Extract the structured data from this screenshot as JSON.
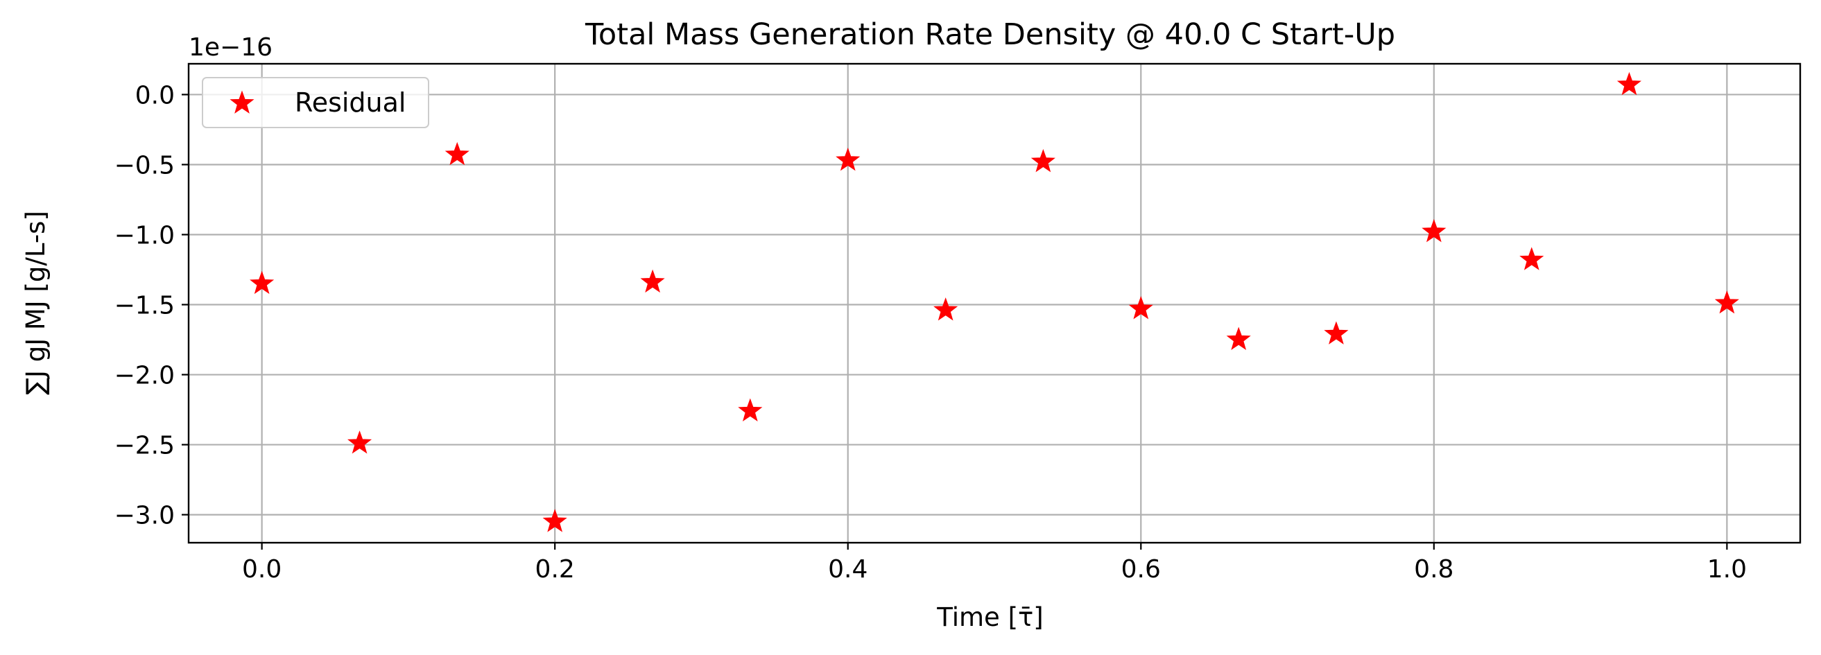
{
  "chart_data": {
    "type": "scatter",
    "title": "Total Mass Generation Rate Density @ 40.0 C Start-Up",
    "xlabel": "Time [τ̄]",
    "ylabel": "∑J gJ MJ [g/L-s]",
    "y_scale_label": "1e−16",
    "xlim": [
      -0.05,
      1.05
    ],
    "ylim": [
      -3.2,
      0.22
    ],
    "grid": true,
    "legend_position": "top-left",
    "x_ticks": [
      0.0,
      0.2,
      0.4,
      0.6,
      0.8,
      1.0
    ],
    "x_tick_labels": [
      "0.0",
      "0.2",
      "0.4",
      "0.6",
      "0.8",
      "1.0"
    ],
    "y_ticks": [
      0.0,
      -0.5,
      -1.0,
      -1.5,
      -2.0,
      -2.5,
      -3.0
    ],
    "y_tick_labels": [
      "0.0",
      "−0.5",
      "−1.0",
      "−1.5",
      "−2.0",
      "−2.5",
      "−3.0"
    ],
    "series": [
      {
        "name": "Residual",
        "color": "#ff0000",
        "marker": "star",
        "x": [
          0.0,
          0.0667,
          0.1333,
          0.2,
          0.2667,
          0.3333,
          0.4,
          0.4667,
          0.5333,
          0.6,
          0.6667,
          0.7333,
          0.8,
          0.8667,
          0.9333,
          1.0
        ],
        "y": [
          -1.35,
          -2.49,
          -0.43,
          -3.05,
          -1.34,
          -2.26,
          -0.47,
          -1.54,
          -0.48,
          -1.53,
          -1.75,
          -1.71,
          -0.98,
          -1.18,
          0.07,
          -1.49
        ]
      }
    ]
  }
}
